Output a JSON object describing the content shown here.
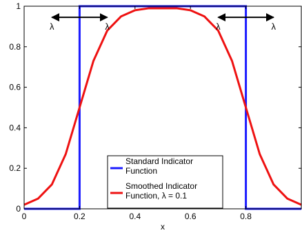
{
  "chart_data": {
    "type": "line",
    "xlabel": "x",
    "ylabel": "",
    "xlim": [
      0,
      1
    ],
    "ylim": [
      0,
      1
    ],
    "x_ticks": [
      "0",
      "0.2",
      "0.4",
      "0.6",
      "0.8"
    ],
    "y_ticks": [
      "0",
      "0.2",
      "0.4",
      "0.6",
      "0.8",
      "1"
    ],
    "grid": false,
    "legend_position": "bottom-center",
    "series": [
      {
        "name": "Standard Indicator Function",
        "color": "#1a1aff",
        "x": [
          0,
          0.2,
          0.2,
          0.8,
          0.8,
          1
        ],
        "y": [
          0,
          0,
          1,
          1,
          0,
          0
        ]
      },
      {
        "name": "Smoothed Indicator Function, λ = 0.1",
        "color": "#ee1111",
        "x": [
          0,
          0.05,
          0.1,
          0.15,
          0.2,
          0.25,
          0.3,
          0.35,
          0.4,
          0.45,
          0.5,
          0.55,
          0.6,
          0.65,
          0.7,
          0.75,
          0.8,
          0.85,
          0.9,
          0.95,
          1
        ],
        "y": [
          0.02,
          0.05,
          0.12,
          0.27,
          0.5,
          0.73,
          0.88,
          0.95,
          0.98,
          0.99,
          0.99,
          0.99,
          0.98,
          0.95,
          0.88,
          0.73,
          0.5,
          0.27,
          0.12,
          0.05,
          0.02
        ]
      }
    ],
    "legend_labels": [
      [
        "Standard Indicator",
        "Function"
      ],
      [
        "Smoothed Indicator",
        "Function, λ = 0.1"
      ]
    ],
    "annotations": [
      {
        "label": "λ",
        "x": 0.1
      },
      {
        "label": "λ",
        "x": 0.3
      },
      {
        "label": "λ",
        "x": 0.7
      },
      {
        "label": "λ",
        "x": 0.9
      }
    ],
    "arrows": [
      {
        "from": 0.1,
        "to": 0.3,
        "y": 0.945
      },
      {
        "from": 0.7,
        "to": 0.9,
        "y": 0.945
      }
    ]
  }
}
